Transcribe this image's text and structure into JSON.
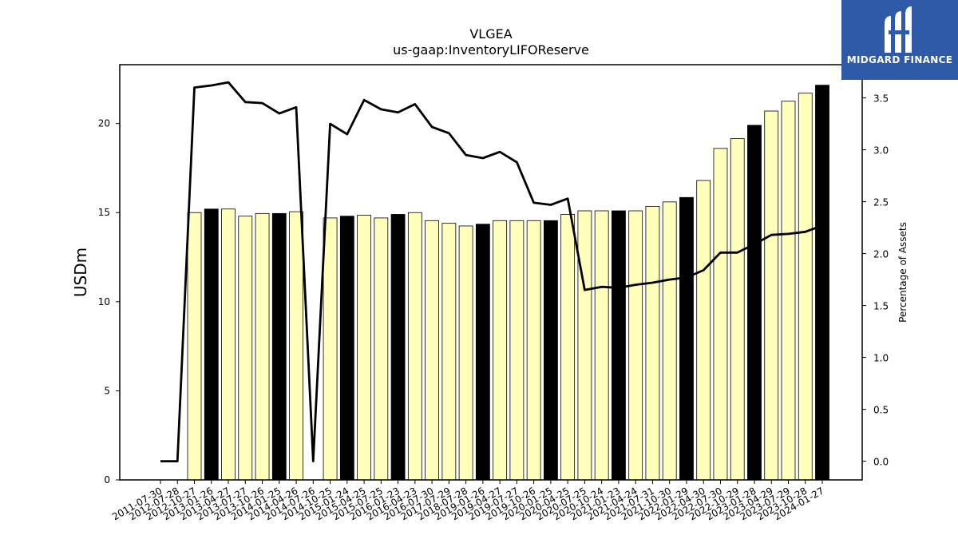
{
  "logo": {
    "brand_text": "MIDGARD FINANCE",
    "icon": "midgard-logo-icon"
  },
  "chart_data": {
    "type": "bar",
    "title": "VLGEA",
    "subtitle": "us-gaap:InventoryLIFOReserve",
    "ylabel": "USDm",
    "y2label": "Percentage of Assets",
    "ylim": [
      0,
      23.3
    ],
    "y2lim": [
      -0.18,
      3.82
    ],
    "yticks": [
      0,
      5,
      10,
      15,
      20
    ],
    "y2ticks": [
      0.0,
      0.5,
      1.0,
      1.5,
      2.0,
      2.5,
      3.0,
      3.5
    ],
    "categories": [
      "2011-07-30",
      "2012-07-28",
      "2012-10-27",
      "2013-01-26",
      "2013-04-27",
      "2013-07-27",
      "2013-10-26",
      "2014-01-25",
      "2014-04-26",
      "2014-07-26",
      "2014-10-25",
      "2015-01-24",
      "2015-04-25",
      "2015-07-25",
      "2016-01-23",
      "2016-04-23",
      "2016-07-30",
      "2017-07-29",
      "2018-07-28",
      "2019-01-26",
      "2019-04-27",
      "2019-07-27",
      "2019-10-26",
      "2020-01-25",
      "2020-04-25",
      "2020-07-25",
      "2020-10-24",
      "2021-01-23",
      "2021-04-24",
      "2021-07-31",
      "2021-10-30",
      "2022-01-29",
      "2022-04-30",
      "2022-07-30",
      "2022-10-29",
      "2023-01-28",
      "2023-04-29",
      "2023-07-29",
      "2023-10-28",
      "2024-01-27"
    ],
    "colors": {
      "bar_light": "#ffffbb",
      "bar_dark": "#000000",
      "line": "#000000"
    },
    "series": [
      {
        "kind": "bar",
        "axis": "left",
        "values": [
          0,
          0,
          15.0,
          15.2,
          15.2,
          14.8,
          14.95,
          14.95,
          15.05,
          0,
          14.7,
          14.8,
          14.85,
          14.7,
          14.9,
          15.0,
          14.55,
          14.4,
          14.25,
          14.35,
          14.55,
          14.55,
          14.55,
          14.55,
          14.9,
          15.1,
          15.1,
          15.1,
          15.1,
          15.35,
          15.6,
          15.85,
          16.8,
          18.6,
          19.15,
          19.9,
          20.7,
          21.25,
          21.7,
          22.15
        ],
        "fill": [
          "light",
          "light",
          "light",
          "dark",
          "light",
          "light",
          "light",
          "dark",
          "light",
          "light",
          "light",
          "dark",
          "light",
          "light",
          "dark",
          "light",
          "light",
          "light",
          "light",
          "dark",
          "light",
          "light",
          "light",
          "dark",
          "light",
          "light",
          "light",
          "dark",
          "light",
          "light",
          "light",
          "dark",
          "light",
          "light",
          "light",
          "dark",
          "light",
          "light",
          "light",
          "dark"
        ]
      },
      {
        "kind": "line",
        "axis": "right",
        "values": [
          0.0,
          0.0,
          3.6,
          3.62,
          3.65,
          3.46,
          3.45,
          3.35,
          3.41,
          0.0,
          3.25,
          3.15,
          3.48,
          3.39,
          3.36,
          3.44,
          3.22,
          3.16,
          2.95,
          2.92,
          2.98,
          2.88,
          2.49,
          2.47,
          2.53,
          1.65,
          1.68,
          1.67,
          1.7,
          1.72,
          1.75,
          1.77,
          1.84,
          2.01,
          2.01,
          2.09,
          2.18,
          2.19,
          2.21,
          2.27
        ]
      }
    ]
  }
}
